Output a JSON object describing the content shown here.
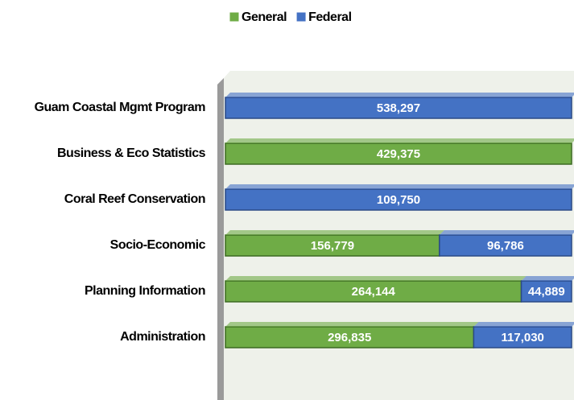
{
  "chart_data": {
    "type": "stacked_bar_100_horizontal",
    "categories": [
      "Guam Coastal Mgmt Program",
      "Business & Eco Statistics",
      "Coral Reef Conservation",
      "Socio-Economic",
      "Planning Information",
      "Administration"
    ],
    "series": [
      {
        "name": "General",
        "color": "#6fac46",
        "values": [
          null,
          429375,
          null,
          156779,
          264144,
          296835
        ],
        "value_labels": [
          null,
          "429,375",
          null,
          "156,779",
          "264,144",
          "296,835"
        ]
      },
      {
        "name": "Federal",
        "color": "#4472c4",
        "values": [
          538297,
          null,
          109750,
          96786,
          44889,
          117030
        ],
        "value_labels": [
          "538,297",
          null,
          "109,750",
          "96,786",
          "44,889",
          "117,030"
        ]
      }
    ],
    "legend": "top"
  }
}
